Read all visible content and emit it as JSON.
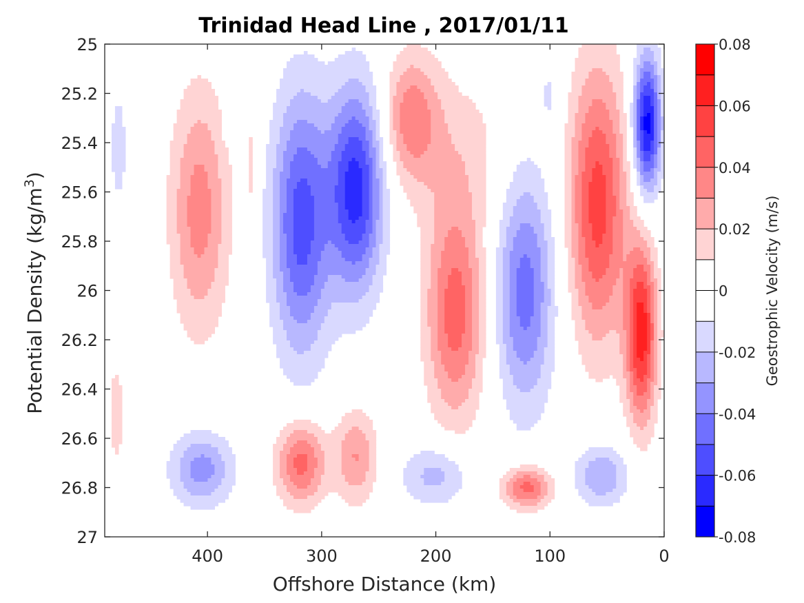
{
  "chart_data": {
    "type": "heatmap",
    "title": "Trinidad Head Line , 2017/01/11",
    "xlabel": "Offshore Distance (km)",
    "ylabel_parts": [
      "Potential Density (kg/m",
      "3",
      ")"
    ],
    "colorbar_label": "Geostrophic Velocity (m/s)",
    "xlim": [
      490,
      0
    ],
    "ylim": [
      25,
      27
    ],
    "x_ticks": [
      400,
      300,
      200,
      100,
      0
    ],
    "x_tick_labels": [
      "400",
      "300",
      "200",
      "100",
      "0"
    ],
    "y_ticks": [
      25,
      25.2,
      25.4,
      25.6,
      25.8,
      26,
      26.2,
      26.4,
      26.6,
      26.8,
      27
    ],
    "y_tick_labels": [
      "25",
      "25.2",
      "25.4",
      "25.6",
      "25.8",
      "26",
      "26.2",
      "26.4",
      "26.6",
      "26.8",
      "27"
    ],
    "colorbar_ticks": [
      0.08,
      0.06,
      0.04,
      0.02,
      0,
      -0.02,
      -0.04,
      -0.06,
      -0.08
    ],
    "colorbar_tick_labels": [
      "0.08",
      "0.06",
      "0.04",
      "0.02",
      "0",
      "-0.02",
      "-0.04",
      "-0.06",
      "-0.08"
    ],
    "colorbar_levels": [
      0.08,
      0.07,
      0.06,
      0.05,
      0.04,
      0.03,
      0.02,
      0.01,
      0,
      -0.01,
      -0.02,
      -0.03,
      -0.04,
      -0.05,
      -0.06,
      -0.07,
      -0.08
    ],
    "colorbar_colors": [
      "#ff0000",
      "#ff2020",
      "#ff4242",
      "#ff6464",
      "#ff8787",
      "#ffabab",
      "#ffd4d4",
      "#ffffff",
      "#ffffff",
      "#d9d9ff",
      "#b8b8ff",
      "#9494ff",
      "#7070ff",
      "#4e4eff",
      "#2a2aff",
      "#0000ff"
    ],
    "features": [
      {
        "center_km": 478,
        "density_top": 25.1,
        "density_bottom": 25.75,
        "half_width_km": 10,
        "peak": -0.015
      },
      {
        "center_km": 480,
        "density_top": 26.2,
        "density_bottom": 26.8,
        "half_width_km": 10,
        "peak": 0.015
      },
      {
        "center_km": 407,
        "density_top": 25.1,
        "density_bottom": 26.25,
        "half_width_km": 30,
        "peak": 0.035
      },
      {
        "center_km": 385,
        "density_top": 25.1,
        "density_bottom": 25.4,
        "half_width_km": 3,
        "peak": -0.012
      },
      {
        "center_km": 362,
        "density_top": 25.1,
        "density_bottom": 25.9,
        "half_width_km": 5,
        "peak": 0.012
      },
      {
        "center_km": 355,
        "density_top": 25.9,
        "density_bottom": 26.25,
        "half_width_km": 3,
        "peak": 0.012
      },
      {
        "center_km": 318,
        "density_top": 25.1,
        "density_bottom": 26.35,
        "half_width_km": 30,
        "peak": -0.055
      },
      {
        "center_km": 270,
        "density_top": 25.1,
        "density_bottom": 26.08,
        "half_width_km": 28,
        "peak": -0.065
      },
      {
        "center_km": 222,
        "density_top": 25.0,
        "density_bottom": 25.6,
        "half_width_km": 28,
        "peak": 0.035
      },
      {
        "center_km": 183,
        "density_top": 25.6,
        "density_bottom": 26.6,
        "half_width_km": 30,
        "peak": 0.045
      },
      {
        "center_km": 180,
        "density_top": 25.0,
        "density_bottom": 25.9,
        "half_width_km": 50,
        "peak": 0.015
      },
      {
        "center_km": 122,
        "density_top": 25.45,
        "density_bottom": 26.55,
        "half_width_km": 30,
        "peak": -0.045
      },
      {
        "center_km": 100,
        "density_top": 25.0,
        "density_bottom": 25.4,
        "half_width_km": 12,
        "peak": -0.012
      },
      {
        "center_km": 160,
        "density_top": 25.0,
        "density_bottom": 25.2,
        "half_width_km": 18,
        "peak": -0.012
      },
      {
        "center_km": 58,
        "density_top": 25.0,
        "density_bottom": 26.3,
        "half_width_km": 30,
        "peak": 0.055
      },
      {
        "center_km": 20,
        "density_top": 25.75,
        "density_bottom": 26.6,
        "half_width_km": 16,
        "peak": 0.065
      },
      {
        "center_km": 15,
        "density_top": 25.0,
        "density_bottom": 25.65,
        "half_width_km": 14,
        "peak": -0.075
      },
      {
        "center_km": 405,
        "density_top": 26.55,
        "density_bottom": 26.9,
        "half_width_km": 32,
        "peak": -0.035
      },
      {
        "center_km": 318,
        "density_top": 26.5,
        "density_bottom": 26.9,
        "half_width_km": 25,
        "peak": 0.045
      },
      {
        "center_km": 270,
        "density_top": 26.45,
        "density_bottom": 26.9,
        "half_width_km": 22,
        "peak": 0.03
      },
      {
        "center_km": 200,
        "density_top": 26.6,
        "density_bottom": 26.9,
        "half_width_km": 35,
        "peak": -0.025
      },
      {
        "center_km": 120,
        "density_top": 26.7,
        "density_bottom": 26.9,
        "half_width_km": 25,
        "peak": 0.045
      },
      {
        "center_km": 55,
        "density_top": 26.6,
        "density_bottom": 26.9,
        "half_width_km": 28,
        "peak": -0.03
      }
    ]
  }
}
